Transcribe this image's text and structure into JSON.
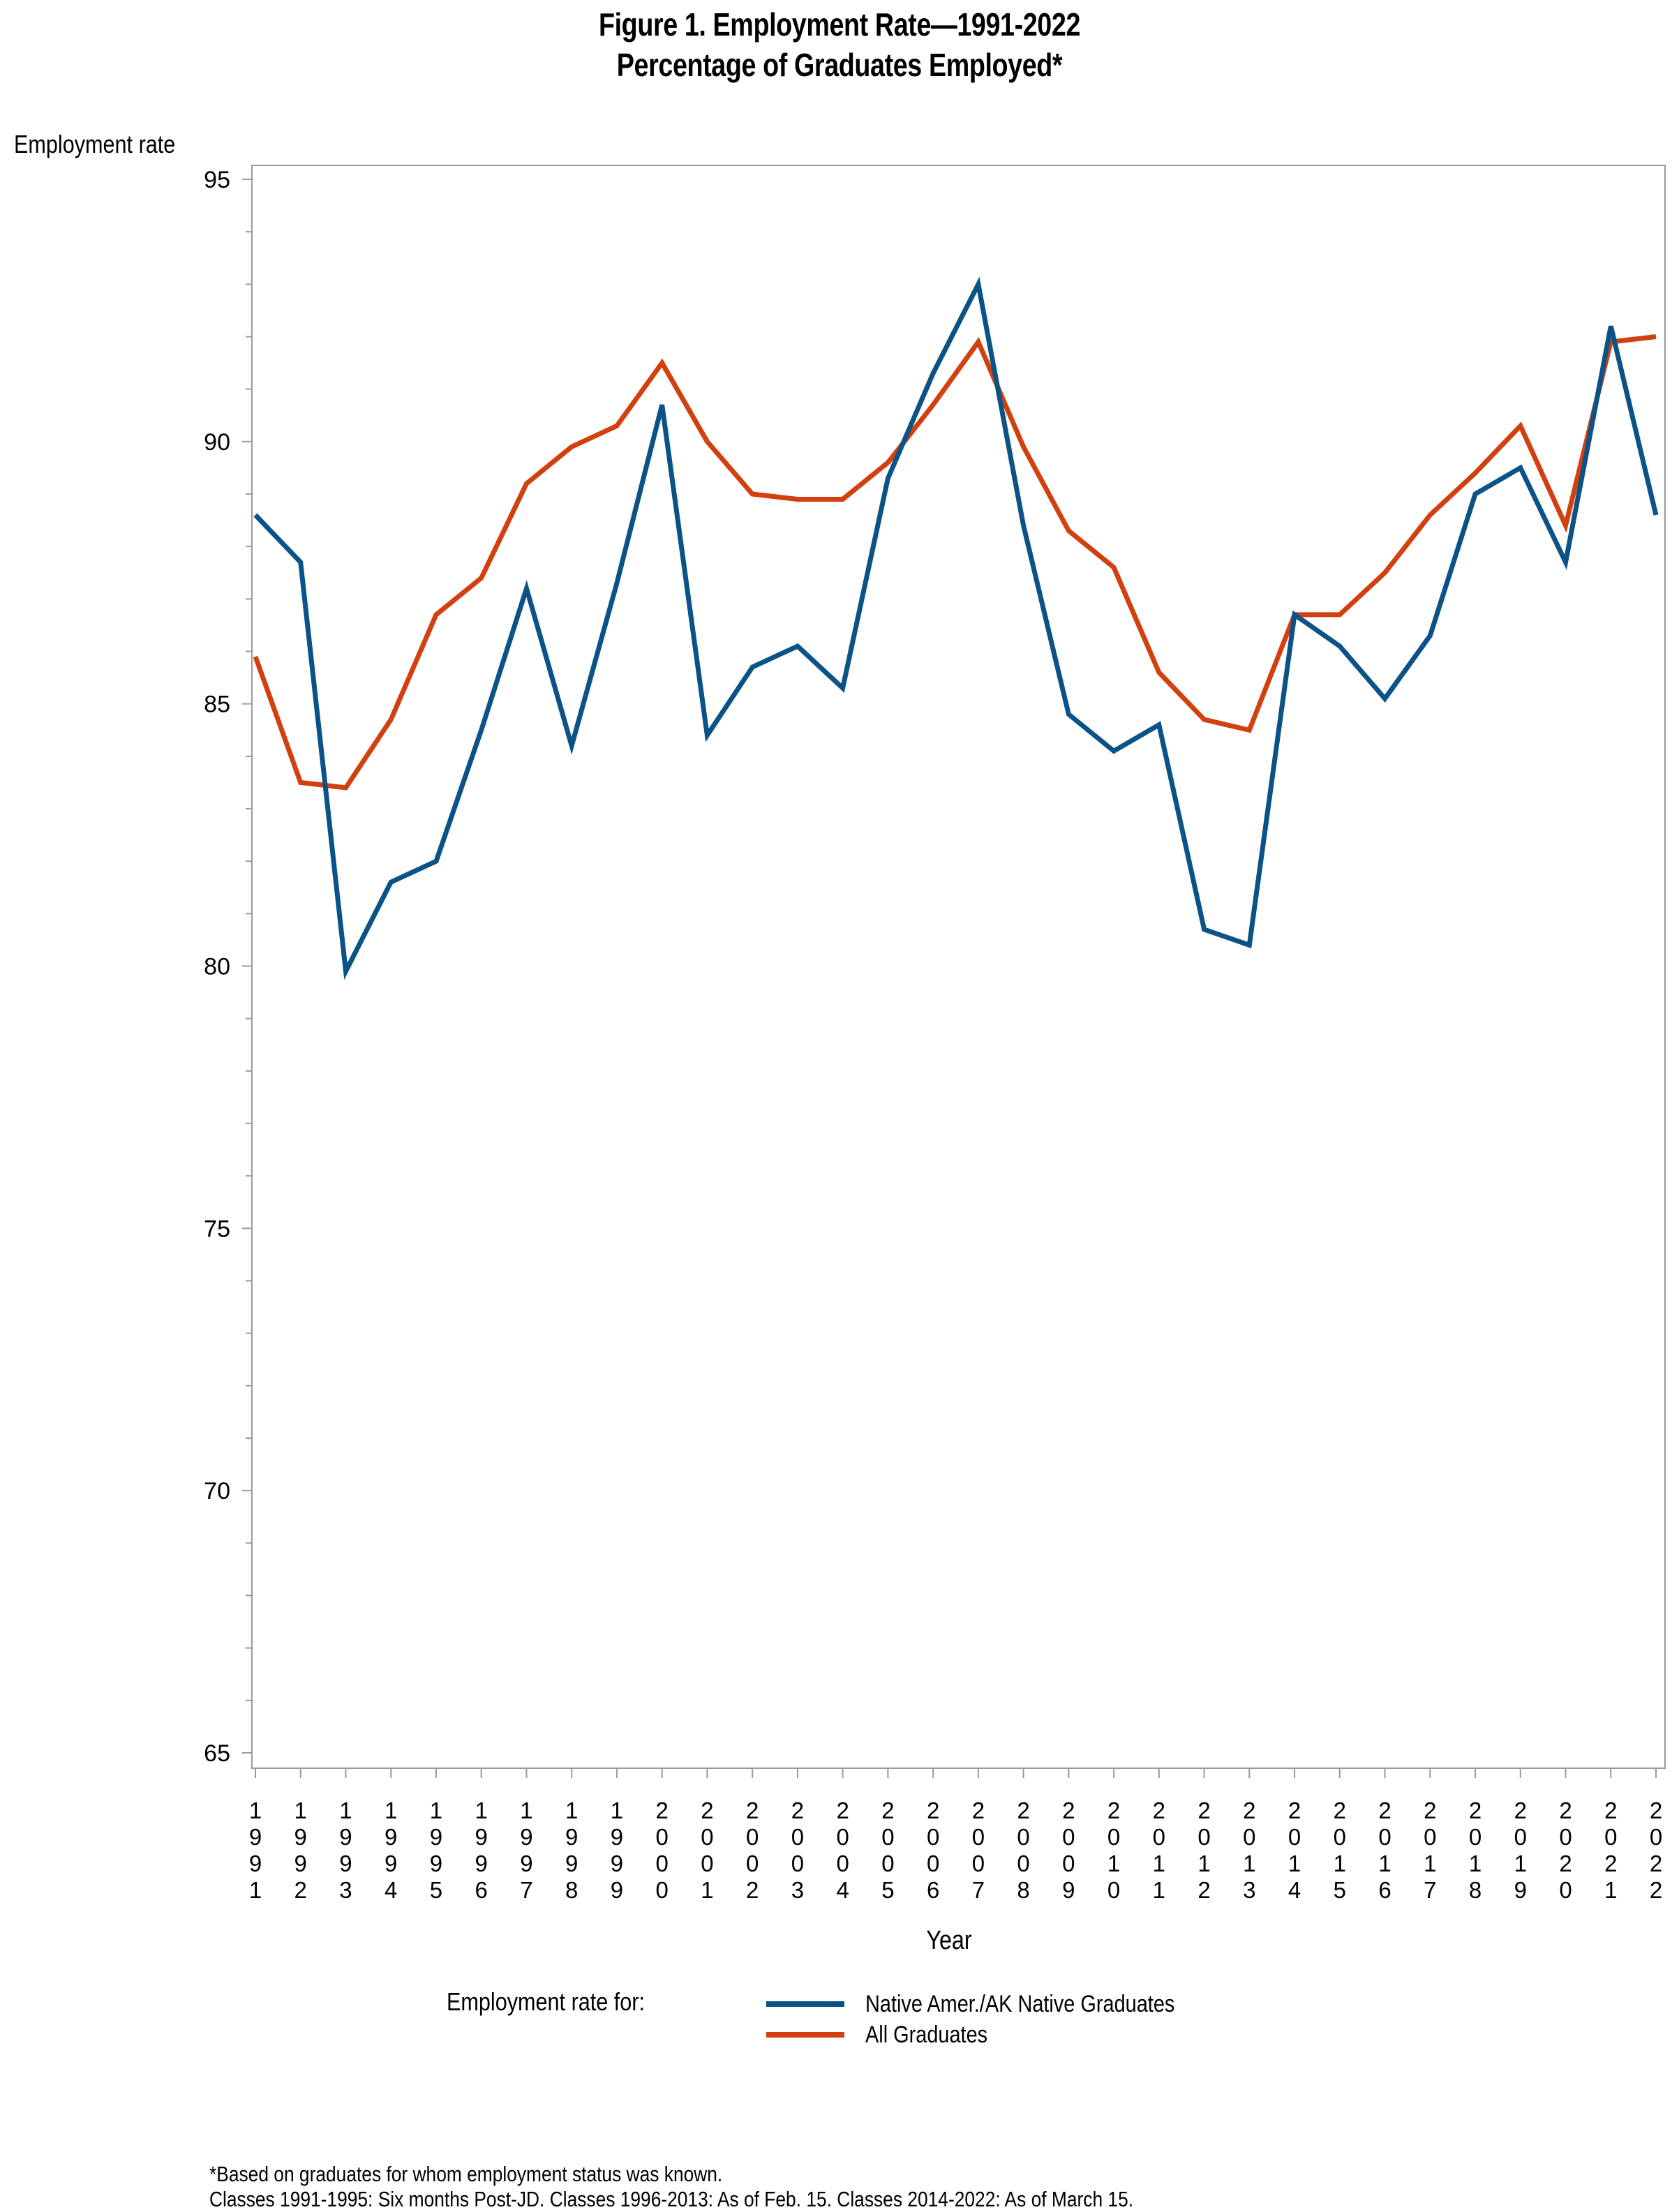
{
  "title_line1": "Figure 1. Employment Rate—1991-2022",
  "title_line2": "Percentage of Graduates Employed*",
  "legend_title": "Employment rate for:",
  "footnote1": "*Based on graduates for whom employment status was known.",
  "footnote2": "Classes 1991-1995: Six months Post-JD. Classes 1996-2013: As of Feb. 15. Classes 2014-2022: As of March 15.",
  "chart_data": {
    "type": "line",
    "title": "Figure 1. Employment Rate—1991-2022",
    "subtitle": "Percentage of Graduates Employed*",
    "xlabel": "Year",
    "ylabel": "Employment rate",
    "ylim": [
      65,
      95
    ],
    "yticks": [
      65,
      70,
      75,
      80,
      85,
      90,
      95
    ],
    "grid": false,
    "legend_position": "bottom",
    "x": [
      "1991",
      "1992",
      "1993",
      "1994",
      "1995",
      "1996",
      "1997",
      "1998",
      "1999",
      "2000",
      "2001",
      "2002",
      "2003",
      "2004",
      "2005",
      "2006",
      "2007",
      "2008",
      "2009",
      "2010",
      "2011",
      "2012",
      "2013",
      "2014",
      "2015",
      "2016",
      "2017",
      "2018",
      "2019",
      "2020",
      "2021",
      "2022"
    ],
    "series": [
      {
        "name": "Native Amer./AK Native Graduates",
        "color": "#0b5386",
        "values": [
          88.6,
          87.7,
          79.9,
          81.6,
          82.0,
          84.5,
          87.2,
          84.2,
          87.3,
          90.7,
          84.4,
          85.7,
          86.1,
          85.3,
          89.3,
          91.3,
          93.0,
          88.4,
          84.8,
          84.1,
          84.6,
          80.7,
          80.4,
          86.7,
          86.1,
          85.1,
          86.3,
          89.0,
          89.5,
          87.7,
          92.2,
          88.6
        ]
      },
      {
        "name": "All Graduates",
        "color": "#d2400f",
        "values": [
          85.9,
          83.5,
          83.4,
          84.7,
          86.7,
          87.4,
          89.2,
          89.9,
          90.3,
          91.5,
          90.0,
          89.0,
          88.9,
          88.9,
          89.6,
          90.7,
          91.9,
          89.9,
          88.3,
          87.6,
          85.6,
          84.7,
          84.5,
          86.7,
          86.7,
          87.5,
          88.6,
          89.4,
          90.3,
          88.4,
          91.9,
          92.0
        ]
      }
    ]
  }
}
